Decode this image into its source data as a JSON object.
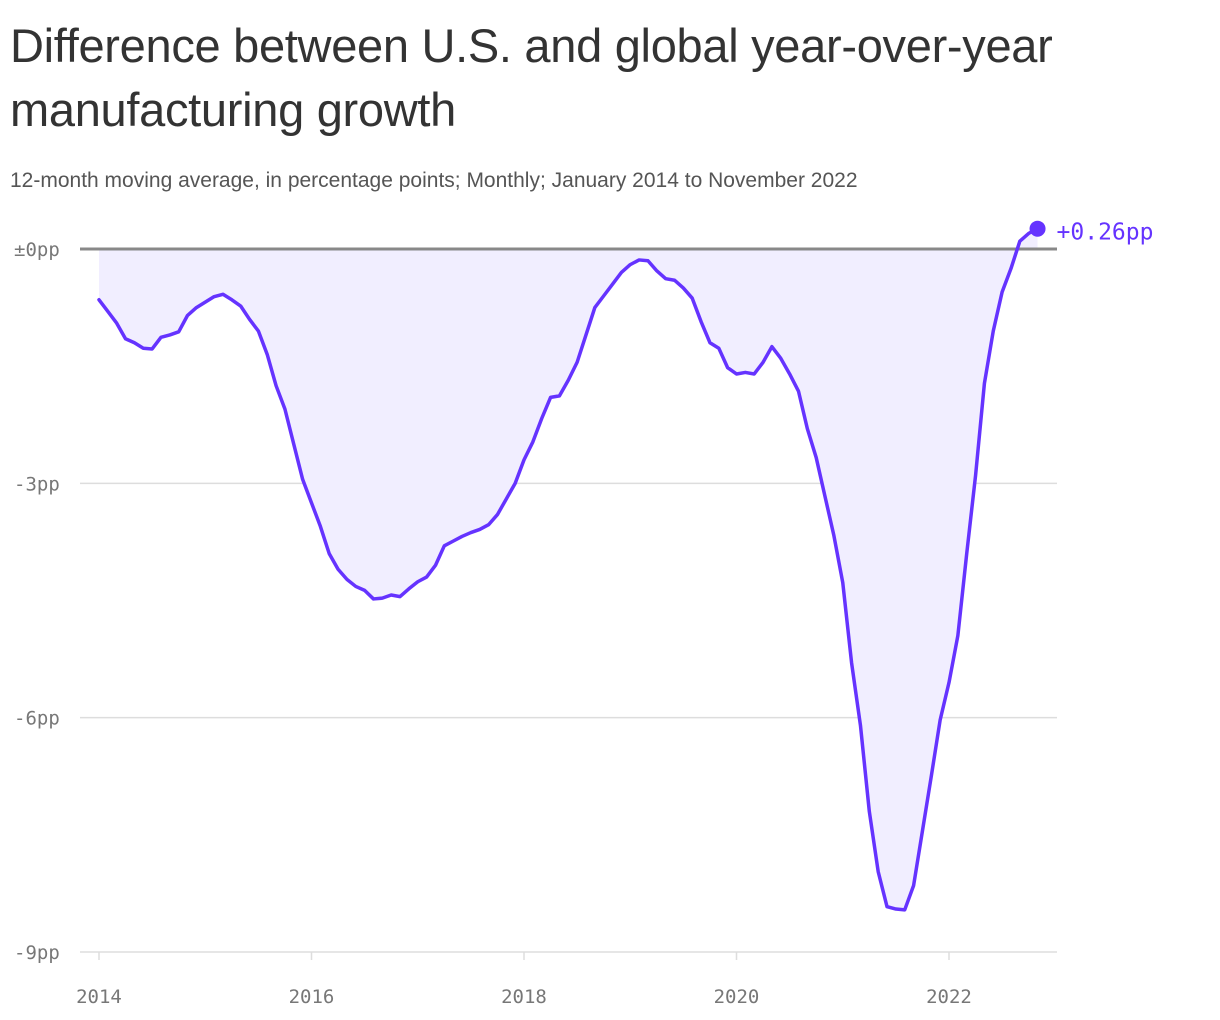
{
  "title": "Difference between U.S. and global year-over-year manufacturing growth",
  "subtitle": "12-month moving average, in percentage points; Monthly; January 2014 to November 2022",
  "colors": {
    "line": "#6533ff",
    "area": "#f1eeff",
    "zero_line": "#888888",
    "grid": "#dddddd",
    "tick_text": "#777777"
  },
  "chart_data": {
    "type": "area",
    "start": "2014-01",
    "end": "2022-11",
    "frequency": "monthly",
    "xlabel": "",
    "ylabel": "",
    "x_ticks": [
      "2014",
      "2016",
      "2018",
      "2020",
      "2022"
    ],
    "y_ticks": [
      {
        "value": 0,
        "label": "±0pp"
      },
      {
        "value": -3,
        "label": "-3pp"
      },
      {
        "value": -6,
        "label": "-6pp"
      },
      {
        "value": -9,
        "label": "-9pp"
      }
    ],
    "ylim": [
      -9,
      0.3
    ],
    "grid": true,
    "end_label": "+0.26pp",
    "values": [
      -0.65,
      -0.8,
      -0.95,
      -1.15,
      -1.2,
      -1.27,
      -1.28,
      -1.13,
      -1.1,
      -1.06,
      -0.85,
      -0.75,
      -0.68,
      -0.61,
      -0.58,
      -0.65,
      -0.73,
      -0.9,
      -1.05,
      -1.35,
      -1.75,
      -2.05,
      -2.5,
      -2.95,
      -3.25,
      -3.55,
      -3.9,
      -4.1,
      -4.23,
      -4.32,
      -4.37,
      -4.48,
      -4.47,
      -4.43,
      -4.45,
      -4.35,
      -4.26,
      -4.2,
      -4.05,
      -3.8,
      -3.74,
      -3.68,
      -3.63,
      -3.59,
      -3.53,
      -3.4,
      -3.2,
      -3.0,
      -2.7,
      -2.47,
      -2.17,
      -1.9,
      -1.88,
      -1.68,
      -1.45,
      -1.1,
      -0.75,
      -0.6,
      -0.45,
      -0.3,
      -0.2,
      -0.14,
      -0.15,
      -0.28,
      -0.38,
      -0.4,
      -0.5,
      -0.63,
      -0.93,
      -1.2,
      -1.27,
      -1.52,
      -1.6,
      -1.58,
      -1.6,
      -1.45,
      -1.25,
      -1.4,
      -1.6,
      -1.82,
      -2.3,
      -2.67,
      -3.17,
      -3.67,
      -4.27,
      -5.3,
      -6.1,
      -7.2,
      -7.97,
      -8.42,
      -8.45,
      -8.46,
      -8.15,
      -7.45,
      -6.75,
      -6.03,
      -5.55,
      -4.95,
      -3.9,
      -2.9,
      -1.72,
      -1.05,
      -0.55,
      -0.25,
      0.1,
      0.2,
      0.26
    ]
  }
}
